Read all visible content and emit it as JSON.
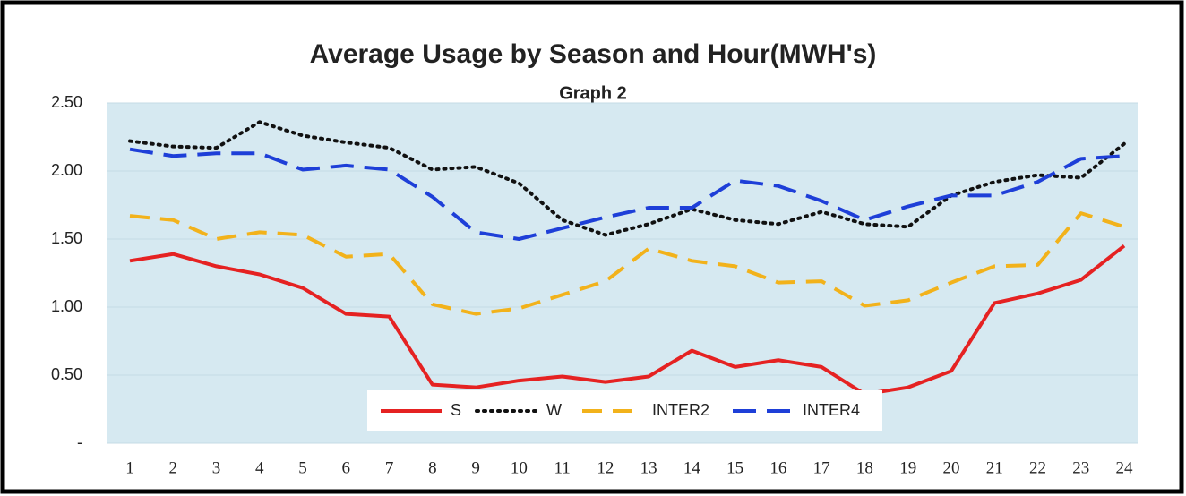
{
  "chart_data": {
    "type": "line",
    "title": "Average Usage by Season and Hour(MWH's)",
    "subtitle": "Graph 2",
    "categories": [
      "1",
      "2",
      "3",
      "4",
      "5",
      "6",
      "7",
      "8",
      "9",
      "10",
      "11",
      "12",
      "13",
      "14",
      "15",
      "16",
      "17",
      "18",
      "19",
      "20",
      "21",
      "22",
      "23",
      "24"
    ],
    "series": [
      {
        "name": "S",
        "color": "#e52222",
        "dash": "solid",
        "values": [
          1.34,
          1.39,
          1.3,
          1.24,
          1.14,
          0.95,
          0.93,
          0.43,
          0.41,
          0.46,
          0.49,
          0.45,
          0.49,
          0.68,
          0.56,
          0.61,
          0.56,
          0.36,
          0.41,
          0.53,
          1.03,
          1.1,
          1.2,
          1.45
        ]
      },
      {
        "name": "W",
        "color": "#111111",
        "dash": "dot",
        "values": [
          2.22,
          2.18,
          2.17,
          2.36,
          2.26,
          2.21,
          2.17,
          2.01,
          2.03,
          1.91,
          1.64,
          1.53,
          1.61,
          1.72,
          1.64,
          1.61,
          1.7,
          1.61,
          1.59,
          1.82,
          1.92,
          1.97,
          1.95,
          2.2
        ]
      },
      {
        "name": "INTER2",
        "color": "#f2b21b",
        "dash": "dash",
        "values": [
          1.67,
          1.64,
          1.5,
          1.55,
          1.53,
          1.37,
          1.39,
          1.02,
          0.95,
          0.99,
          1.09,
          1.19,
          1.43,
          1.34,
          1.3,
          1.18,
          1.19,
          1.01,
          1.05,
          1.18,
          1.3,
          1.31,
          1.69,
          1.59
        ]
      },
      {
        "name": "INTER4",
        "color": "#1e3fd8",
        "dash": "longdash",
        "values": [
          2.16,
          2.11,
          2.13,
          2.13,
          2.01,
          2.04,
          2.01,
          1.81,
          1.55,
          1.5,
          1.58,
          1.66,
          1.73,
          1.73,
          1.93,
          1.89,
          1.78,
          1.64,
          1.74,
          1.82,
          1.82,
          1.92,
          2.09,
          2.11
        ]
      }
    ],
    "ylim": [
      0,
      2.5
    ],
    "yticks": [
      {
        "value": 0,
        "label": "-"
      },
      {
        "value": 0.5,
        "label": "0.50"
      },
      {
        "value": 1,
        "label": "1.00"
      },
      {
        "value": 1.5,
        "label": "1.50"
      },
      {
        "value": 2,
        "label": "2.00"
      },
      {
        "value": 2.5,
        "label": "2.50"
      }
    ],
    "grid": true,
    "legend": "bottom"
  }
}
